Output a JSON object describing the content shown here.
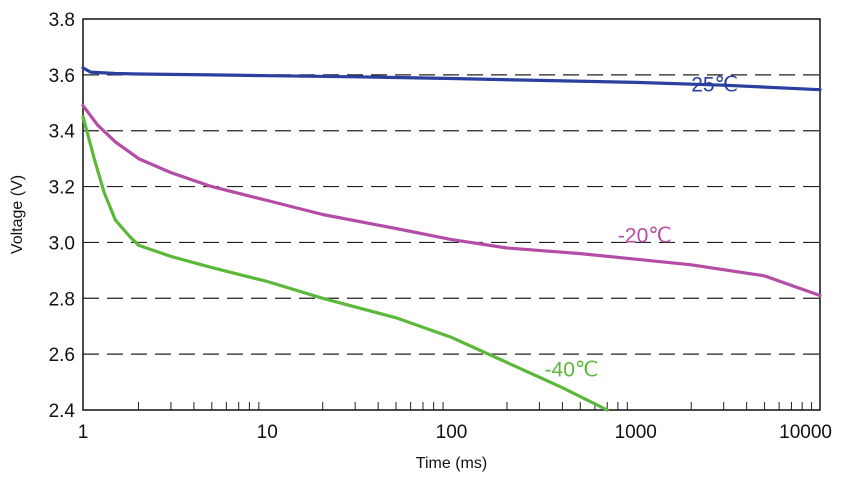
{
  "chart_data": {
    "type": "line",
    "title": "",
    "xlabel": "Time (ms)",
    "ylabel": "Voltage (V)",
    "xscale": "log",
    "xlim": [
      1,
      10000
    ],
    "ylim": [
      2.4,
      3.8
    ],
    "x_ticks": [
      "1",
      "10",
      "100",
      "1000",
      "10000"
    ],
    "y_ticks": [
      "2.4",
      "2.6",
      "2.8",
      "3.0",
      "3.2",
      "3.4",
      "3.6",
      "3.8"
    ],
    "grid": "horizontal dashed",
    "legend": "none (series labels placed inline near each curve)",
    "series": [
      {
        "name": "25℃",
        "color": "#2b3f9e",
        "points": [
          [
            1,
            3.625
          ],
          [
            1.1,
            3.61
          ],
          [
            1.5,
            3.605
          ],
          [
            2,
            3.603
          ],
          [
            5,
            3.6
          ],
          [
            10,
            3.597
          ],
          [
            30,
            3.593
          ],
          [
            100,
            3.587
          ],
          [
            300,
            3.58
          ],
          [
            1000,
            3.573
          ],
          [
            3000,
            3.563
          ],
          [
            10000,
            3.547
          ]
        ]
      },
      {
        "name": "-20℃",
        "color": "#b34da6",
        "points": [
          [
            1,
            3.49
          ],
          [
            1.2,
            3.42
          ],
          [
            1.5,
            3.36
          ],
          [
            2,
            3.3
          ],
          [
            3,
            3.25
          ],
          [
            5,
            3.2
          ],
          [
            10,
            3.15
          ],
          [
            20,
            3.1
          ],
          [
            50,
            3.05
          ],
          [
            100,
            3.01
          ],
          [
            200,
            2.98
          ],
          [
            500,
            2.96
          ],
          [
            1000,
            2.94
          ],
          [
            2000,
            2.92
          ],
          [
            5000,
            2.88
          ],
          [
            10000,
            2.81
          ]
        ]
      },
      {
        "name": "-40℃",
        "color": "#5cb83a",
        "points": [
          [
            1,
            3.45
          ],
          [
            1.15,
            3.3
          ],
          [
            1.3,
            3.18
          ],
          [
            1.5,
            3.08
          ],
          [
            1.8,
            3.02
          ],
          [
            2,
            2.99
          ],
          [
            3,
            2.95
          ],
          [
            5,
            2.91
          ],
          [
            10,
            2.86
          ],
          [
            20,
            2.8
          ],
          [
            50,
            2.73
          ],
          [
            100,
            2.66
          ],
          [
            200,
            2.57
          ],
          [
            400,
            2.48
          ],
          [
            700,
            2.4
          ]
        ]
      }
    ],
    "annotations": [
      {
        "series": 0,
        "text": "25℃",
        "x": 2000,
        "y": 3.54
      },
      {
        "series": 1,
        "text": "-20℃",
        "x": 800,
        "y": 3.0
      },
      {
        "series": 2,
        "text": "-40℃",
        "x": 320,
        "y": 2.52
      }
    ]
  }
}
